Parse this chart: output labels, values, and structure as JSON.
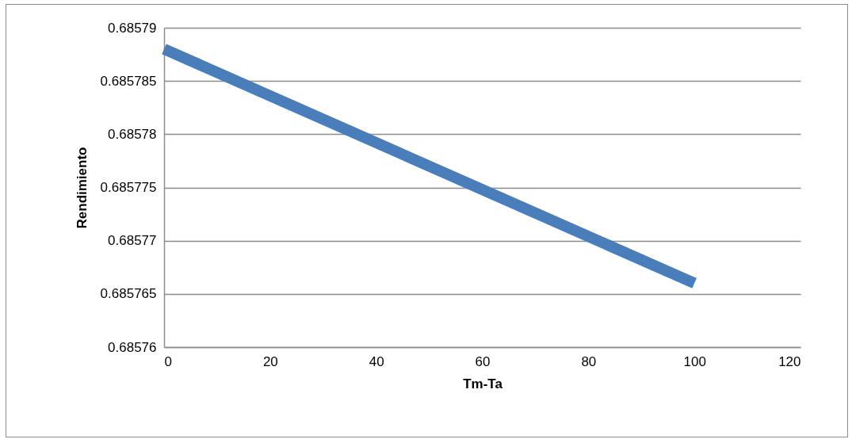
{
  "chart_data": {
    "type": "line",
    "xlabel": "Tm-Ta",
    "ylabel": "Rendimiento",
    "x": [
      0,
      100
    ],
    "series": [
      {
        "color": "#4a7ebb",
        "values": [
          0.685788,
          0.685766
        ]
      }
    ],
    "xlim": [
      0,
      120
    ],
    "xticks": [
      0,
      20,
      40,
      60,
      80,
      100,
      120
    ],
    "ylim": [
      0.68576,
      0.68579
    ],
    "yticks": [
      0.68576,
      0.685765,
      0.68577,
      0.685775,
      0.68578,
      0.685785,
      0.68579
    ],
    "grid": "y",
    "marker": "none",
    "line_style": "solid"
  }
}
